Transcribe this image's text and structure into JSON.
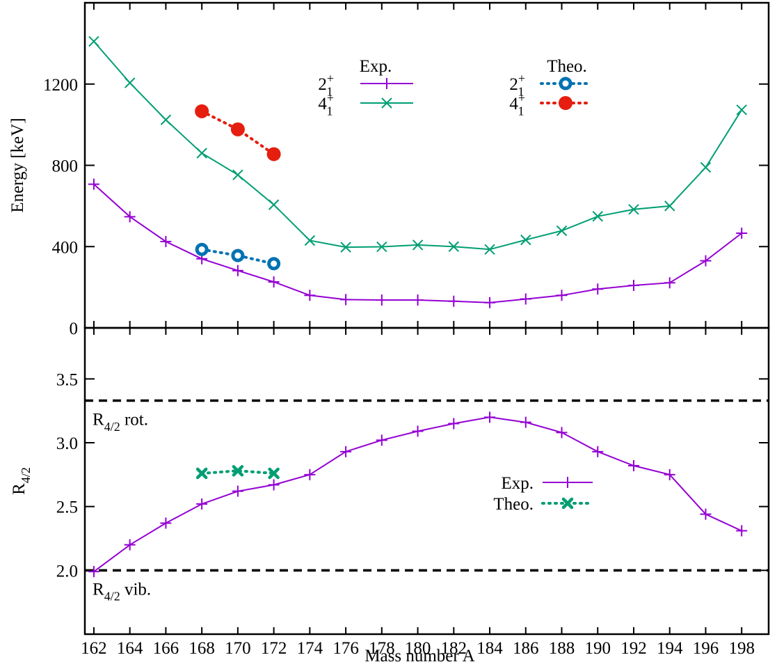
{
  "chart_data": [
    {
      "type": "line",
      "panel": "top",
      "ylabel": "Energy [keV]",
      "xlim": [
        161.5,
        199.5
      ],
      "ylim": [
        0,
        1600
      ],
      "y_ticks": [
        0,
        400,
        800,
        1200
      ],
      "grid": false,
      "legend_groups": [
        {
          "heading": "Exp.",
          "position": "top-center"
        },
        {
          "heading": "Theo.",
          "position": "top-right"
        }
      ],
      "series": [
        {
          "name": "2_1^+",
          "label_main": "2",
          "label_sup": "+",
          "label_sub": "1",
          "group": 0,
          "style": "solid",
          "marker": "plus",
          "color": "#9400d3",
          "x": [
            162,
            164,
            166,
            168,
            170,
            172,
            174,
            176,
            178,
            180,
            182,
            184,
            186,
            188,
            190,
            192,
            194,
            196,
            198
          ],
          "y": [
            707,
            547,
            425,
            340,
            282,
            226,
            160,
            139,
            137,
            137,
            131,
            124,
            142,
            160,
            191,
            209,
            222,
            330,
            466
          ]
        },
        {
          "name": "4_1^+",
          "label_main": "4",
          "label_sup": "+",
          "label_sub": "1",
          "group": 0,
          "style": "solid",
          "marker": "cross",
          "color": "#009e73",
          "x": [
            162,
            164,
            166,
            168,
            170,
            172,
            174,
            176,
            178,
            180,
            182,
            184,
            186,
            188,
            190,
            192,
            194,
            196,
            198
          ],
          "y": [
            1410,
            1206,
            1024,
            860,
            753,
            606,
            430,
            397,
            399,
            408,
            400,
            386,
            433,
            478,
            549,
            583,
            600,
            790,
            1073
          ]
        },
        {
          "name": "2_1^+",
          "label_main": "2",
          "label_sup": "+",
          "label_sub": "1",
          "group": 1,
          "style": "dotted",
          "marker": "ring",
          "color": "#0072b2",
          "x": [
            168,
            170,
            172
          ],
          "y": [
            386,
            356,
            316
          ]
        },
        {
          "name": "4_1^+",
          "label_main": "4",
          "label_sup": "+",
          "label_sub": "1",
          "group": 1,
          "style": "dotted",
          "marker": "disc",
          "color": "#e51e10",
          "x": [
            168,
            170,
            172
          ],
          "y": [
            1066,
            977,
            855
          ]
        }
      ]
    },
    {
      "type": "line",
      "panel": "bottom",
      "xlabel": "Mass number A",
      "ylabel": "R",
      "ylabel_sub": "4/2",
      "xlim": [
        161.5,
        199.5
      ],
      "ylim": [
        1.5,
        3.9
      ],
      "x_ticks": [
        162,
        164,
        166,
        168,
        170,
        172,
        174,
        176,
        178,
        180,
        182,
        184,
        186,
        188,
        190,
        192,
        194,
        196,
        198
      ],
      "y_ticks": [
        {
          "value": 2.0,
          "label": "2.0"
        },
        {
          "value": 2.5,
          "label": "2.5"
        },
        {
          "value": 3.0,
          "label": "3.0"
        },
        {
          "value": 3.5,
          "label": "3.5"
        }
      ],
      "grid": false,
      "legend_placement": "center-right",
      "reference_lines": [
        {
          "y": 3.33,
          "label_main": "R",
          "label_sub": "4/2",
          "label_rest": " rot."
        },
        {
          "y": 2.0,
          "label_main": "R",
          "label_sub": "4/2",
          "label_rest": " vib."
        }
      ],
      "series": [
        {
          "name": "Exp.",
          "style": "solid",
          "marker": "plus",
          "color": "#9400d3",
          "x": [
            162,
            164,
            166,
            168,
            170,
            172,
            174,
            176,
            178,
            180,
            182,
            184,
            186,
            188,
            190,
            192,
            194,
            196,
            198
          ],
          "y": [
            1.99,
            2.2,
            2.37,
            2.52,
            2.62,
            2.67,
            2.75,
            2.93,
            3.02,
            3.09,
            3.15,
            3.2,
            3.16,
            3.08,
            2.93,
            2.82,
            2.75,
            2.44,
            2.31
          ]
        },
        {
          "name": "Theo.",
          "style": "dotted",
          "marker": "xbold",
          "color": "#009e73",
          "x": [
            168,
            170,
            172
          ],
          "y": [
            2.76,
            2.78,
            2.76
          ]
        }
      ]
    }
  ]
}
